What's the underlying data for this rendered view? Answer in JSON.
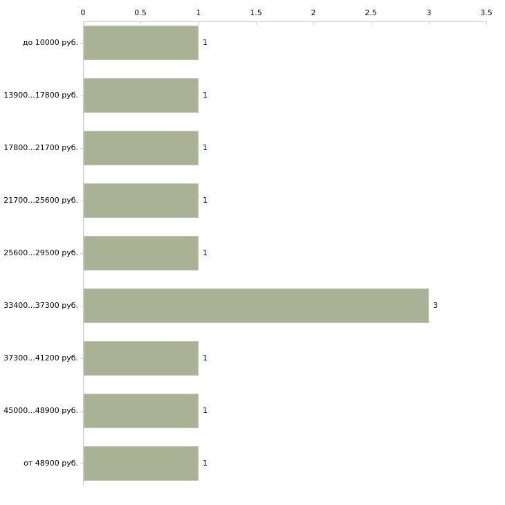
{
  "chart_data": {
    "type": "bar",
    "orientation": "horizontal",
    "title": "",
    "xlabel": "",
    "ylabel": "",
    "categories": [
      "до 10000 руб.",
      "13900...17800 руб.",
      "17800...21700 руб.",
      "21700...25600 руб.",
      "25600...29500 руб.",
      "33400...37300 руб.",
      "37300...41200 руб.",
      "45000...48900 руб.",
      "от 48900 руб."
    ],
    "values": [
      1,
      1,
      1,
      1,
      1,
      3,
      1,
      1,
      1
    ],
    "value_labels": [
      "1",
      "1",
      "1",
      "1",
      "1",
      "3",
      "1",
      "1",
      "1"
    ],
    "xlim": [
      0,
      3.5
    ],
    "xticks": [
      0,
      0.5,
      1,
      1.5,
      2,
      2.5,
      3,
      3.5
    ],
    "xtick_labels": [
      "0",
      "0.5",
      "1",
      "1.5",
      "2",
      "2.5",
      "3",
      "3.5"
    ],
    "axis_position": "top",
    "grid": false,
    "legend": false,
    "colors": {
      "bar_fill": "#a9b294",
      "axis_line": "#c6c6c6",
      "tick_mark": "#cdd0ab",
      "text": "#000000",
      "background": "#ffffff"
    }
  }
}
